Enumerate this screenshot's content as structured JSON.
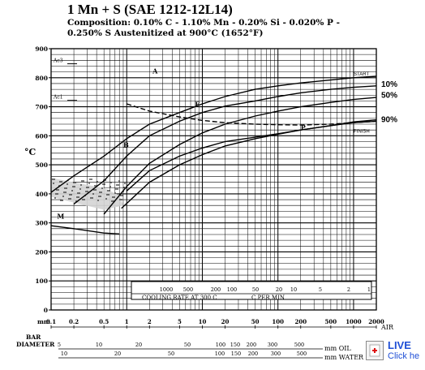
{
  "header": {
    "title": "1 Mn + S (SAE 1212-12L14)",
    "composition_line1": "Composition: 0.10% C - 1.10% Mn - 0.20% Si - 0.020% P -",
    "composition_line2": "0.250% S Austenitized at 900°C (1652°F)"
  },
  "chart_data": {
    "type": "line",
    "title": "1 Mn + S (SAE 1212-12L14)",
    "ylabel": "°C",
    "ylim": [
      0,
      900
    ],
    "yticks": [
      "0",
      "100",
      "200",
      "300",
      "400",
      "500",
      "600",
      "700",
      "800",
      "900"
    ],
    "x_axis_label": "AIR",
    "x_unit": "mm",
    "xlim": [
      0.1,
      2000
    ],
    "xscale": "log",
    "xticks": [
      "0.1",
      "0.2",
      "0.5",
      "1",
      "2",
      "5",
      "10",
      "20",
      "50",
      "100",
      "200",
      "500",
      "1000",
      "2000"
    ],
    "grid": true,
    "critical_temps": [
      {
        "label": "Ac3",
        "value": 848
      },
      {
        "label": "Ac1",
        "value": 722
      }
    ],
    "region_labels": [
      "A",
      "F",
      "P",
      "B",
      "M"
    ],
    "series": [
      {
        "name": "START",
        "x": [
          0.1,
          0.2,
          0.5,
          1,
          2,
          5,
          10,
          20,
          50,
          100,
          200,
          500,
          1000,
          2000
        ],
        "y": [
          405,
          462,
          530,
          590,
          640,
          680,
          710,
          735,
          760,
          772,
          782,
          792,
          800,
          805
        ]
      },
      {
        "name": "10%",
        "x": [
          0.2,
          0.5,
          1,
          2,
          5,
          10,
          20,
          50,
          100,
          200,
          500,
          1000,
          2000
        ],
        "y": [
          365,
          445,
          530,
          600,
          650,
          680,
          702,
          720,
          735,
          748,
          760,
          767,
          772
        ]
      },
      {
        "name": "50%",
        "x": [
          0.5,
          1,
          2,
          5,
          10,
          20,
          50,
          100,
          200,
          500,
          1000,
          2000
        ],
        "y": [
          330,
          425,
          505,
          570,
          610,
          640,
          668,
          685,
          700,
          715,
          725,
          732
        ]
      },
      {
        "name": "90%",
        "x": [
          0.85,
          2,
          5,
          10,
          20,
          50,
          100,
          200,
          500,
          1000,
          2000
        ],
        "y": [
          350,
          440,
          500,
          535,
          565,
          590,
          605,
          620,
          635,
          645,
          650
        ]
      },
      {
        "name": "FINISH",
        "x": [
          1,
          2,
          5,
          10,
          20,
          50,
          100,
          200,
          500,
          1000,
          2000
        ],
        "y": [
          410,
          480,
          530,
          558,
          580,
          595,
          607,
          620,
          635,
          648,
          655
        ]
      },
      {
        "name": "dashed",
        "x": [
          1,
          2,
          5,
          10,
          20,
          50,
          100,
          200,
          500,
          1000,
          2000
        ],
        "y": [
          710,
          685,
          665,
          653,
          645,
          640,
          638,
          637,
          640,
          645,
          650
        ]
      },
      {
        "name": "Ms",
        "x": [
          0.1,
          0.2,
          0.5,
          0.8
        ],
        "y": [
          290,
          280,
          265,
          262
        ]
      }
    ],
    "line_labels": [
      {
        "text": "START",
        "y": 805
      },
      {
        "text": "10%",
        "y": 780
      },
      {
        "text": "50%",
        "y": 742
      },
      {
        "text": "90%",
        "y": 658
      },
      {
        "text": "FINISH",
        "y": 608
      }
    ],
    "cooling_rate_axis": {
      "label_left": "COOLING RATE AT 300 C",
      "label_right": "C PER MIN",
      "ticks": [
        "1000",
        "500",
        "200",
        "100",
        "50",
        "20",
        "10",
        "5",
        "2",
        "1"
      ]
    },
    "bar_diameter": {
      "label_line1": "BAR",
      "label_line2": "DIAMETER",
      "oil_unit": "mm OIL",
      "water_unit": "mm WATER",
      "air_label": "AIR",
      "oil_ticks": [
        "5",
        "10",
        "20",
        "50",
        "100",
        "150",
        "200",
        "300",
        "500"
      ],
      "water_ticks": [
        "10",
        "20",
        "50",
        "100",
        "150",
        "200",
        "300",
        "500"
      ]
    }
  },
  "live_widget": {
    "label": "LIVE",
    "sublabel": "Click he"
  }
}
